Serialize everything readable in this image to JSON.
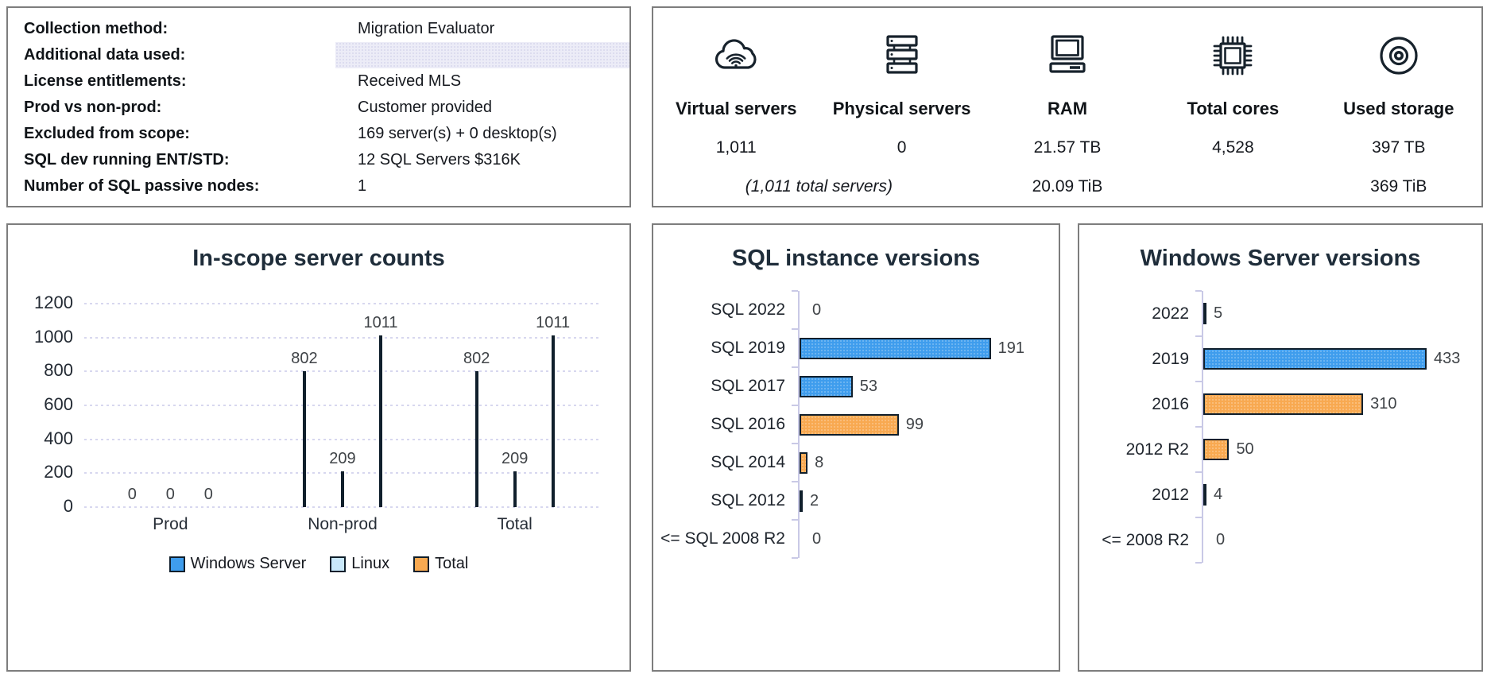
{
  "info_panel": {
    "rows": [
      {
        "label": "Collection method:",
        "value": "Migration Evaluator"
      },
      {
        "label": "Additional data used:",
        "value": ""
      },
      {
        "label": "License entitlements:",
        "value": "Received MLS"
      },
      {
        "label": "Prod vs non-prod:",
        "value": "Customer provided"
      },
      {
        "label": "Excluded from scope:",
        "value": "169 server(s) + 0 desktop(s)"
      },
      {
        "label": "SQL dev running ENT/STD:",
        "value": "12 SQL Servers $316K"
      },
      {
        "label": "Number of SQL passive nodes:",
        "value": "1"
      }
    ]
  },
  "summary_panel": {
    "metrics": [
      {
        "icon": "cloud-icon",
        "label": "Virtual servers",
        "value": "1,011"
      },
      {
        "icon": "server-stack-icon",
        "label": "Physical servers",
        "value": "0"
      },
      {
        "icon": "computer-icon",
        "label": "RAM",
        "value": "21.57 TB"
      },
      {
        "icon": "chip-icon",
        "label": "Total cores",
        "value": "4,528"
      },
      {
        "icon": "disc-icon",
        "label": "Used storage",
        "value": "397 TB"
      }
    ],
    "footnotes": {
      "servers_total": "(1,011 total servers)",
      "ram_tib": "20.09 TiB",
      "storage_tib": "369 TiB"
    }
  },
  "colors": {
    "blue": "#3f9ded",
    "light_blue": "#c9e8fb",
    "orange": "#f8a951",
    "navy": "#1b2b3a",
    "bar_border": "#101f2c",
    "title": "#1f2d3a",
    "gridline": "#d7d7ef",
    "shaded_row": "#ececf7"
  },
  "chart_data": [
    {
      "type": "bar",
      "orientation": "vertical",
      "title": "In-scope server counts",
      "categories": [
        "Prod",
        "Non-prod",
        "Total"
      ],
      "series": [
        {
          "name": "Windows Server",
          "color": "#3f9ded",
          "values": [
            0,
            802,
            802
          ]
        },
        {
          "name": "Linux",
          "color": "#c9e8fb",
          "values": [
            0,
            209,
            209
          ]
        },
        {
          "name": "Total",
          "color": "#f8a951",
          "values": [
            0,
            1011,
            1011
          ]
        }
      ],
      "ylim": [
        0,
        1200
      ],
      "yticks": [
        0,
        200,
        400,
        600,
        800,
        1000,
        1200
      ],
      "grid": "horizontal-dotted",
      "legend_position": "bottom",
      "data_labels": true
    },
    {
      "type": "bar",
      "orientation": "horizontal",
      "title": "SQL instance versions",
      "categories": [
        "SQL 2022",
        "SQL 2019",
        "SQL 2017",
        "SQL 2016",
        "SQL 2014",
        "SQL 2012",
        "<= SQL 2008 R2"
      ],
      "values": [
        0,
        191,
        53,
        99,
        8,
        2,
        0
      ],
      "bar_colors": [
        "none",
        "#3f9ded",
        "#3f9ded",
        "#f8a951",
        "#f8a951",
        "#1b2b3a",
        "none"
      ],
      "xlim": [
        0,
        200
      ],
      "grid": "off",
      "data_labels": true
    },
    {
      "type": "bar",
      "orientation": "horizontal",
      "title": "Windows Server versions",
      "categories": [
        "2022",
        "2019",
        "2016",
        "2012 R2",
        "2012",
        "<= 2008 R2"
      ],
      "values": [
        5,
        433,
        310,
        50,
        4,
        0
      ],
      "bar_colors": [
        "#1b2b3a",
        "#3f9ded",
        "#f8a951",
        "#f8a951",
        "#1b2b3a",
        "none"
      ],
      "xlim": [
        0,
        450
      ],
      "grid": "off",
      "data_labels": true
    }
  ]
}
